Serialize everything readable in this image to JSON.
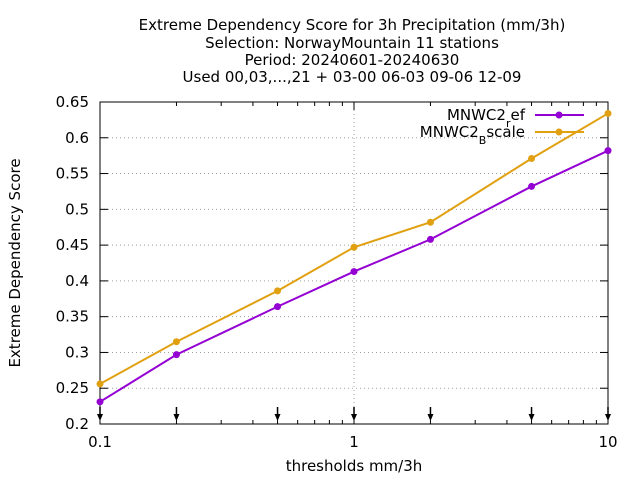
{
  "chart_data": {
    "type": "line",
    "title_lines": [
      "Extreme Dependency Score  for 3h Precipitation (mm/3h)",
      "Selection: NorwayMountain     11 stations",
      "Period: 20240601-20240630",
      "Used 00,03,...,21 + 03-00 06-03 09-06 12-09"
    ],
    "xlabel": "thresholds mm/3h",
    "ylabel": "Extreme Dependency Score",
    "x_scale": "log",
    "xlim": [
      0.1,
      10
    ],
    "ylim": [
      0.2,
      0.65
    ],
    "x_ticks": [
      0.1,
      1,
      10
    ],
    "x_tick_labels": [
      "0.1",
      "1",
      "10"
    ],
    "y_ticks": [
      0.2,
      0.25,
      0.3,
      0.35,
      0.4,
      0.45,
      0.5,
      0.55,
      0.6,
      0.65
    ],
    "y_tick_labels": [
      "0.2",
      "0.25",
      "0.3",
      "0.35",
      "0.4",
      "0.45",
      "0.5",
      "0.55",
      "0.6",
      "0.65"
    ],
    "grid": "dotted at x = 1",
    "legend_placement": "top-right",
    "threshold_markers_x": [
      0.1,
      0.2,
      0.5,
      1,
      2,
      5,
      10
    ],
    "x": [
      0.1,
      0.2,
      0.5,
      1,
      2,
      5,
      10
    ],
    "series": [
      {
        "name_main": "MNWC2",
        "name_sub": "r",
        "name_rest": "ef",
        "color": "#9400d3",
        "values": [
          0.231,
          0.297,
          0.364,
          0.413,
          0.458,
          0.532,
          0.582
        ]
      },
      {
        "name_main": "MNWC2",
        "name_sub": "B",
        "name_rest": "scale",
        "color": "#e0a010",
        "values": [
          0.256,
          0.315,
          0.386,
          0.447,
          0.482,
          0.571,
          0.634
        ]
      }
    ]
  }
}
